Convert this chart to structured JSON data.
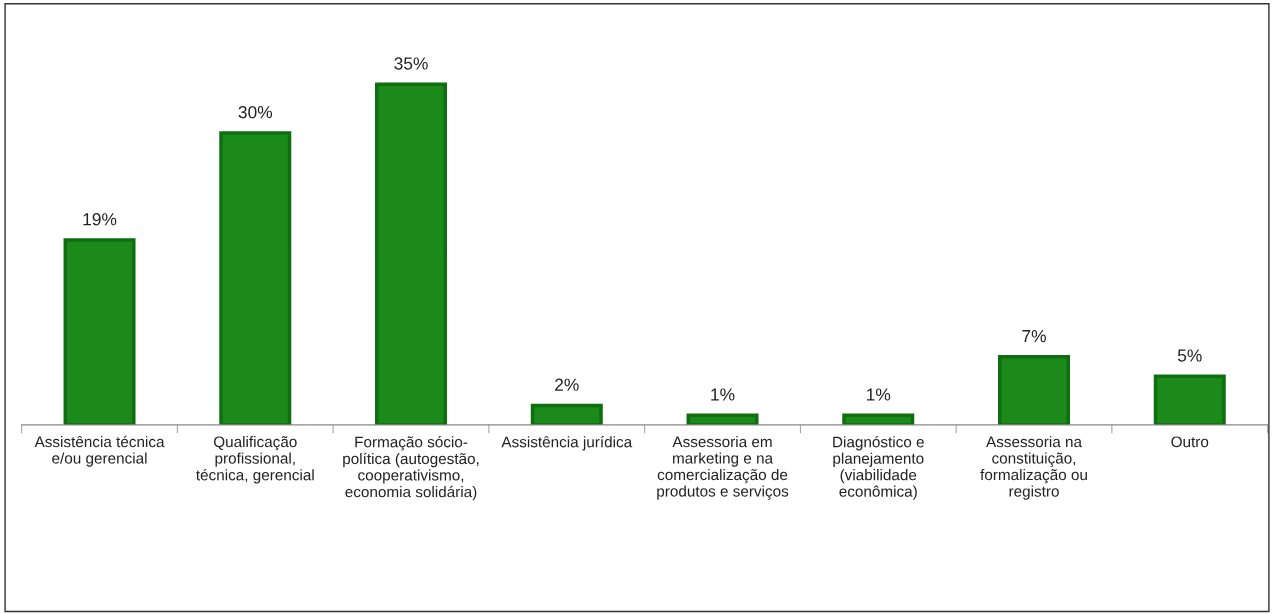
{
  "chart_data": {
    "type": "bar",
    "categories": [
      "Assistência técnica\ne/ou gerencial",
      "Qualificação\nprofissional,\ntécnica, gerencial",
      "Formação sócio-\npolítica (autogestão,\ncooperativismo,\neconomia solidária)",
      "Assistência jurídica",
      "Assessoria em\nmarketing e na\ncomercialização de\nprodutos e serviços",
      "Diagnóstico e\nplanejamento\n(viabilidade\neconômica)",
      "Assessoria na\nconstituição,\nformalização ou\nregistro",
      "Outro"
    ],
    "values": [
      19,
      30,
      35,
      2,
      1,
      1,
      7,
      5
    ],
    "value_labels": [
      "19%",
      "30%",
      "35%",
      "2%",
      "1%",
      "1%",
      "7%",
      "5%"
    ],
    "color": "#1b8a1b",
    "grid": false,
    "legend": false
  }
}
